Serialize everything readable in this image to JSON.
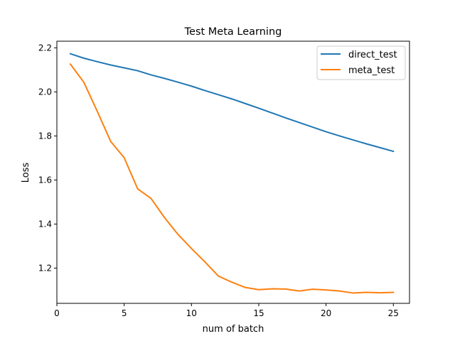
{
  "chart_data": {
    "type": "line",
    "title": "Test Meta Learning",
    "xlabel": "num of batch",
    "ylabel": "Loss",
    "xlim": [
      0,
      26.2
    ],
    "ylim": [
      1.04,
      2.23
    ],
    "xticks": [
      0,
      5,
      10,
      15,
      20,
      25
    ],
    "xtick_labels": [
      "0",
      "5",
      "10",
      "15",
      "20",
      "25"
    ],
    "yticks": [
      1.2,
      1.4,
      1.6,
      1.8,
      2.0,
      2.2
    ],
    "ytick_labels": [
      "1.2",
      "1.4",
      "1.6",
      "1.8",
      "2.0",
      "2.2"
    ],
    "grid": false,
    "legend_position": "top-right",
    "x": [
      1,
      2,
      3,
      4,
      5,
      6,
      7,
      8,
      9,
      10,
      11,
      12,
      13,
      14,
      15,
      16,
      17,
      18,
      19,
      20,
      21,
      22,
      23,
      24,
      25
    ],
    "series": [
      {
        "name": "direct_test",
        "color": "#1f77b4",
        "values": [
          2.173,
          2.153,
          2.137,
          2.122,
          2.109,
          2.096,
          2.077,
          2.061,
          2.044,
          2.026,
          2.006,
          1.987,
          1.968,
          1.947,
          1.926,
          1.904,
          1.882,
          1.861,
          1.84,
          1.819,
          1.8,
          1.782,
          1.764,
          1.747,
          1.73
        ]
      },
      {
        "name": "meta_test",
        "color": "#ff7f0e",
        "values": [
          2.126,
          2.044,
          1.912,
          1.775,
          1.701,
          1.56,
          1.516,
          1.429,
          1.353,
          1.289,
          1.228,
          1.164,
          1.136,
          1.112,
          1.102,
          1.106,
          1.105,
          1.096,
          1.104,
          1.101,
          1.096,
          1.087,
          1.09,
          1.088,
          1.09
        ]
      }
    ]
  }
}
